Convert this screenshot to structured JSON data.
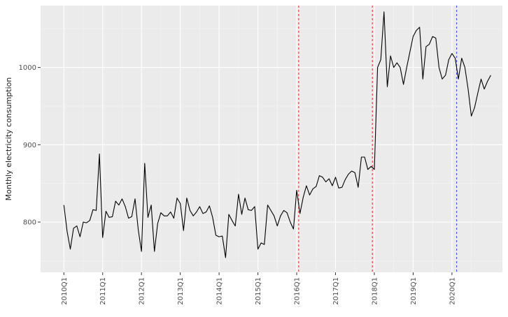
{
  "chart_data": {
    "type": "line",
    "title": "",
    "xlabel": "",
    "ylabel": "Monthly electricity consumption",
    "x_tick_labels": [
      "2010Q1",
      "2011Q1",
      "2012Q1",
      "2013Q1",
      "2014Q1",
      "2015Q1",
      "2016Q1",
      "2017Q1",
      "2018Q1",
      "2019Q1",
      "2020Q1"
    ],
    "y_ticks": [
      800,
      900,
      1000
    ],
    "xlim": [
      2009.4,
      2021.3
    ],
    "ylim": [
      735,
      1080
    ],
    "grid": true,
    "series": [
      {
        "x_start": 2010.0,
        "x_step": 0.083333,
        "color": "#000000",
        "values": [
          822,
          788,
          765,
          792,
          795,
          781,
          800,
          799,
          802,
          816,
          815,
          888,
          780,
          814,
          806,
          807,
          827,
          822,
          830,
          820,
          805,
          807,
          830,
          790,
          762,
          876,
          806,
          822,
          762,
          798,
          812,
          808,
          808,
          813,
          805,
          831,
          824,
          789,
          831,
          815,
          808,
          813,
          820,
          811,
          813,
          821,
          806,
          783,
          781,
          782,
          754,
          810,
          802,
          795,
          836,
          810,
          831,
          816,
          815,
          820,
          765,
          773,
          771,
          822,
          815,
          808,
          795,
          808,
          815,
          812,
          800,
          791,
          841,
          811,
          832,
          847,
          835,
          843,
          846,
          860,
          858,
          852,
          856,
          847,
          858,
          844,
          845,
          855,
          862,
          866,
          864,
          845,
          884,
          884,
          868,
          872,
          868,
          1000,
          1010,
          1072,
          975,
          1015,
          1000,
          1006,
          1000,
          978,
          1000,
          1020,
          1040,
          1048,
          1052,
          985,
          1027,
          1030,
          1040,
          1038,
          1000,
          985,
          990,
          1010,
          1018,
          1012,
          985,
          1012,
          1000,
          972,
          937,
          948,
          967,
          985,
          972,
          982,
          990
        ]
      }
    ],
    "reference_lines": [
      {
        "x": 2016.05,
        "color": "#e8444a",
        "style": "dashed"
      },
      {
        "x": 2017.95,
        "color": "#e8444a",
        "style": "dashed"
      },
      {
        "x": 2020.12,
        "color": "#4a5ce8",
        "style": "dashed"
      }
    ]
  }
}
